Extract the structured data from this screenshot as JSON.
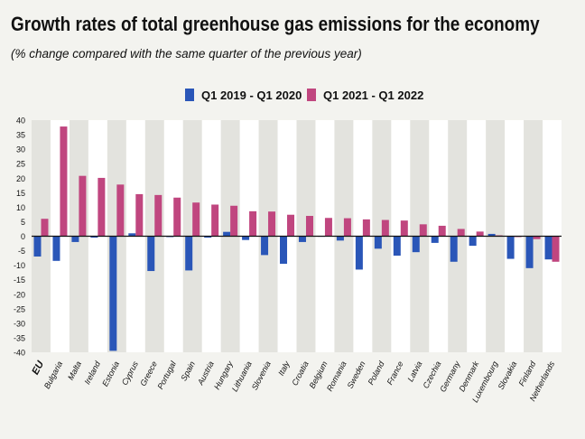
{
  "title": "Growth rates of total greenhouse gas emissions for the economy",
  "subtitle": "(% change compared with the same quarter of the previous year)",
  "legend": [
    {
      "label": "Q1 2019 - Q1 2020",
      "color": "#2a56b8"
    },
    {
      "label": "Q1 2021 - Q1 2022",
      "color": "#c0467f"
    }
  ],
  "chart_data": {
    "type": "bar",
    "title": "Growth rates of total greenhouse gas emissions for the economy",
    "ylabel": "(% change compared with the same quarter of the previous year)",
    "xlabel": "",
    "ylim": [
      -40,
      40
    ],
    "yticks": [
      40,
      35,
      30,
      25,
      20,
      15,
      10,
      5,
      0,
      -5,
      -10,
      -15,
      -20,
      -25,
      -30,
      -35,
      -40
    ],
    "grid": "vertical column bands",
    "legend_position": "top-center",
    "categories": [
      "EU",
      "Bulgaria",
      "Malta",
      "Ireland",
      "Estonia",
      "Cyprus",
      "Greece",
      "Portugal",
      "Spain",
      "Austria",
      "Hungary",
      "Lithuania",
      "Slovenia",
      "Italy",
      "Croatia",
      "Belgium",
      "Romania",
      "Sweden",
      "Poland",
      "France",
      "Latvia",
      "Czechia",
      "Germany",
      "Denmark",
      "Luxembourg",
      "Slovakia",
      "Finland",
      "Netherlands"
    ],
    "series": [
      {
        "name": "Q1 2019 - Q1 2020",
        "color": "#2a56b8",
        "values": [
          -7,
          -8.5,
          -2,
          -0.5,
          -39.5,
          1,
          -12,
          -0.3,
          -11.8,
          -0.5,
          1.5,
          -1.3,
          -6.5,
          -9.5,
          -2,
          0,
          -1.5,
          -11.5,
          -4.3,
          -6.7,
          -5.5,
          -2.3,
          -8.8,
          -3.3,
          0.8,
          -7.8,
          -11,
          -8
        ]
      },
      {
        "name": "Q1 2021 - Q1 2022",
        "color": "#c0467f",
        "values": [
          6,
          37.8,
          20.8,
          20.1,
          17.8,
          14.5,
          14.2,
          13.3,
          11.6,
          10.9,
          10.5,
          8.6,
          8.5,
          7.4,
          7,
          6.3,
          6.2,
          5.8,
          5.6,
          5.4,
          4.1,
          3.6,
          2.5,
          1.6,
          0.3,
          -0.3,
          -1,
          -8.8
        ]
      }
    ]
  }
}
